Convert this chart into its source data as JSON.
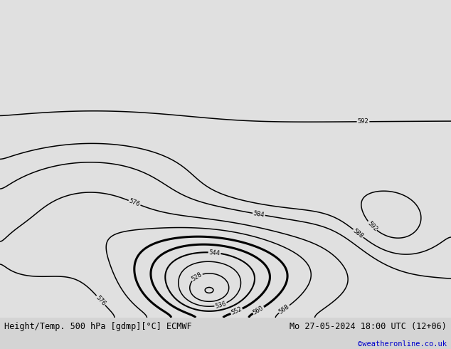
{
  "title_left": "Height/Temp. 500 hPa [gdmp][°C] ECMWF",
  "title_right": "Mo 27-05-2024 18:00 UTC (12+06)",
  "credit": "©weatheronline.co.uk",
  "bg_color": "#d4d4d4",
  "land_color_rgb": [
    181,
    217,
    140
  ],
  "ocean_color_rgb": [
    224,
    224,
    224
  ],
  "coast_color": "#808080",
  "border_color": "#909090",
  "height_contour_color": "#000000",
  "temp_color_m5": "#ff2020",
  "temp_color_m10": "#ff8800",
  "temp_color_m15": "#ccaa00",
  "temp_color_m20": "#88cc00",
  "temp_color_m25": "#00cccc",
  "temp_color_m30": "#0088cc",
  "title_fontsize": 8.5,
  "credit_fontsize": 7.5,
  "credit_color": "#0000cc",
  "lon_min": -110,
  "lon_max": -15,
  "lat_min": -65,
  "lat_max": 22
}
